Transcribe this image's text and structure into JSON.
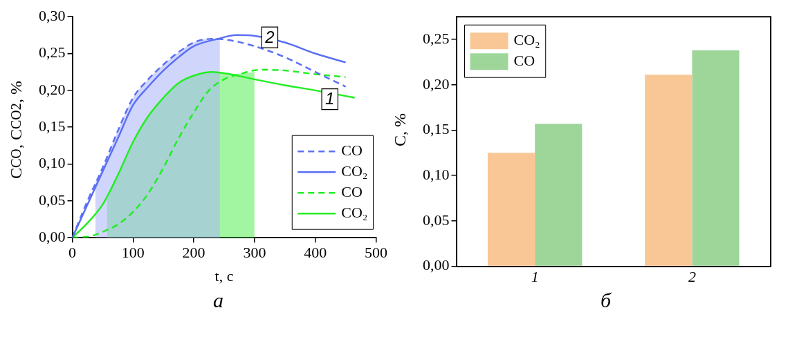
{
  "chart_data": [
    {
      "type": "line",
      "xlabel": "t, с",
      "ylabel": "C$_{CO}$, C$_{CO2}$, %",
      "xlim": [
        0,
        500
      ],
      "xticks": [
        0,
        100,
        200,
        300,
        400,
        500
      ],
      "ylim": [
        0,
        0.3
      ],
      "yticks": [
        {
          "value": 0,
          "label": "0,00"
        },
        {
          "value": 0.05,
          "label": "0,05"
        },
        {
          "value": 0.1,
          "label": "0,10"
        },
        {
          "value": 0.15,
          "label": "0,15"
        },
        {
          "value": 0.2,
          "label": "0,20"
        },
        {
          "value": 0.25,
          "label": "0,25"
        },
        {
          "value": 0.3,
          "label": "0,30"
        }
      ],
      "legend": "bottom right",
      "grid": false,
      "series": [
        {
          "type": "area",
          "color": "#aab4f8",
          "x": [
            38,
            50,
            75,
            100,
            125,
            150,
            175,
            200,
            225,
            243
          ],
          "values": [
            0.075,
            0.095,
            0.145,
            0.19,
            0.215,
            0.235,
            0.252,
            0.265,
            0.27,
            0.27
          ]
        },
        {
          "type": "area",
          "color": "#55ee55",
          "x": [
            57,
            75,
            100,
            125,
            150,
            175,
            200,
            230,
            260,
            300
          ],
          "values": [
            0.05,
            0.085,
            0.13,
            0.165,
            0.19,
            0.21,
            0.22,
            0.225,
            0.222,
            0.225
          ]
        },
        {
          "name": "CO",
          "color": "#5b6ff5",
          "line_style": "dashed",
          "x": [
            0,
            25,
            50,
            75,
            100,
            125,
            150,
            175,
            200,
            230,
            260,
            300,
            350,
            400,
            450
          ],
          "values": [
            0,
            0.05,
            0.095,
            0.145,
            0.19,
            0.215,
            0.235,
            0.252,
            0.265,
            0.27,
            0.268,
            0.26,
            0.245,
            0.225,
            0.205
          ]
        },
        {
          "name": "CO₂",
          "color": "#5b6ff5",
          "line_style": "solid",
          "x": [
            0,
            25,
            50,
            75,
            100,
            125,
            150,
            175,
            200,
            240,
            270,
            300,
            350,
            400,
            450
          ],
          "values": [
            0,
            0.045,
            0.09,
            0.135,
            0.18,
            0.205,
            0.227,
            0.245,
            0.26,
            0.27,
            0.275,
            0.274,
            0.265,
            0.25,
            0.238
          ]
        },
        {
          "name": "CO",
          "color": "#22ee22",
          "line_style": "dashed",
          "x": [
            0,
            30,
            50,
            75,
            100,
            125,
            150,
            175,
            200,
            225,
            250,
            275,
            310,
            350,
            400,
            450
          ],
          "values": [
            0,
            0.002,
            0.008,
            0.018,
            0.035,
            0.06,
            0.095,
            0.135,
            0.17,
            0.2,
            0.215,
            0.222,
            0.228,
            0.227,
            0.222,
            0.218
          ]
        },
        {
          "name": "CO₂",
          "color": "#22ee22",
          "line_style": "solid",
          "x": [
            0,
            25,
            50,
            75,
            100,
            125,
            150,
            175,
            200,
            230,
            260,
            300,
            350,
            400,
            465
          ],
          "values": [
            0,
            0.02,
            0.045,
            0.085,
            0.13,
            0.165,
            0.19,
            0.21,
            0.22,
            0.225,
            0.222,
            0.215,
            0.207,
            0.2,
            0.19
          ]
        }
      ],
      "annotations": [
        {
          "text": "2",
          "x": 325,
          "y": 0.272
        },
        {
          "text": "1",
          "x": 424,
          "y": 0.188
        },
        "а"
      ]
    },
    {
      "type": "bar",
      "ylabel": "C, %",
      "categories": [
        "1",
        "2"
      ],
      "ylim": [
        0,
        0.275
      ],
      "yticks": [
        {
          "value": 0,
          "label": "0,00"
        },
        {
          "value": 0.05,
          "label": "0,05"
        },
        {
          "value": 0.1,
          "label": "0,10"
        },
        {
          "value": 0.15,
          "label": "0,15"
        },
        {
          "value": 0.2,
          "label": "0,20"
        },
        {
          "value": 0.25,
          "label": "0,25"
        }
      ],
      "legend": "top left",
      "grid": false,
      "series": [
        {
          "name": "CO₂",
          "color": "#f9c796",
          "values": [
            0.125,
            0.211
          ]
        },
        {
          "name": "CO",
          "color": "#9ed69a",
          "values": [
            0.157,
            0.238
          ]
        }
      ],
      "annotations": [
        "б"
      ]
    }
  ]
}
